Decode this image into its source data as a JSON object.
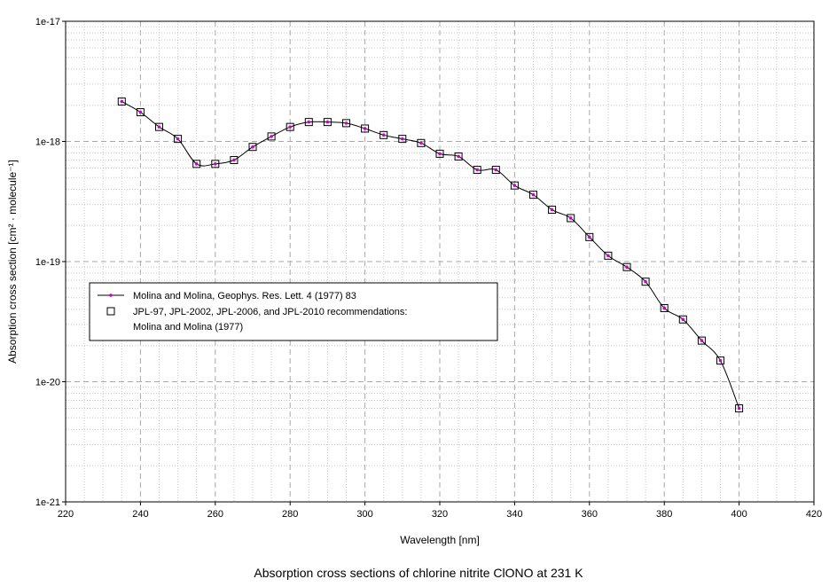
{
  "caption": "Absorption cross sections of chlorine nitrite ClONO at 231 K",
  "chart_data": {
    "type": "line",
    "xlabel": "Wavelength [nm]",
    "ylabel": "Absorption cross section [cm² · molecule⁻¹]",
    "xlim": [
      220,
      420
    ],
    "ylim": [
      1e-21,
      1e-17
    ],
    "yscale": "log",
    "grid": true,
    "legend_position": "center-left",
    "x_ticks": [
      "220",
      "240",
      "260",
      "280",
      "300",
      "320",
      "340",
      "360",
      "380",
      "400",
      "420"
    ],
    "y_ticks": [
      "1e-21",
      "1e-20",
      "1e-19",
      "1e-18",
      "1e-17"
    ],
    "series": [
      {
        "name": "Molina and Molina, Geophys. Res. Lett. 4 (1977) 83",
        "color": "#cc00cc",
        "marker": "dot-with-line",
        "x": [
          235,
          240,
          245,
          250,
          255,
          260,
          265,
          270,
          275,
          280,
          285,
          290,
          295,
          300,
          305,
          310,
          315,
          320,
          325,
          330,
          335,
          340,
          345,
          350,
          355,
          360,
          365,
          370,
          375,
          380,
          385,
          390,
          395,
          400
        ],
        "y": [
          2.15e-18,
          1.75e-18,
          1.32e-18,
          1.05e-18,
          6.5e-19,
          6.5e-19,
          7e-19,
          9e-19,
          1.1e-18,
          1.32e-18,
          1.45e-18,
          1.45e-18,
          1.42e-18,
          1.28e-18,
          1.13e-18,
          1.05e-18,
          9.7e-19,
          7.9e-19,
          7.5e-19,
          5.8e-19,
          5.8e-19,
          4.3e-19,
          3.6e-19,
          2.7e-19,
          2.3e-19,
          1.6e-19,
          1.12e-19,
          9e-20,
          6.8e-20,
          4.1e-20,
          3.3e-20,
          2.2e-20,
          1.5e-20,
          6e-21
        ]
      },
      {
        "name": "JPL-97, JPL-2002, JPL-2006, and JPL-2010 recommendations: Molina and Molina (1977)",
        "legend_lines": [
          "JPL-97, JPL-2002, JPL-2006, and JPL-2010 recommendations:",
          "Molina and Molina (1977)"
        ],
        "color": "#000000",
        "marker": "open-square",
        "x": [
          235,
          240,
          245,
          250,
          255,
          260,
          265,
          270,
          275,
          280,
          285,
          290,
          295,
          300,
          305,
          310,
          315,
          320,
          325,
          330,
          335,
          340,
          345,
          350,
          355,
          360,
          365,
          370,
          375,
          380,
          385,
          390,
          395,
          400
        ],
        "y": [
          2.15e-18,
          1.75e-18,
          1.32e-18,
          1.05e-18,
          6.5e-19,
          6.5e-19,
          7e-19,
          9e-19,
          1.1e-18,
          1.32e-18,
          1.45e-18,
          1.45e-18,
          1.42e-18,
          1.28e-18,
          1.13e-18,
          1.05e-18,
          9.7e-19,
          7.9e-19,
          7.5e-19,
          5.8e-19,
          5.8e-19,
          4.3e-19,
          3.6e-19,
          2.7e-19,
          2.3e-19,
          1.6e-19,
          1.12e-19,
          9e-20,
          6.8e-20,
          4.1e-20,
          3.3e-20,
          2.2e-20,
          1.5e-20,
          6e-21
        ]
      }
    ]
  }
}
